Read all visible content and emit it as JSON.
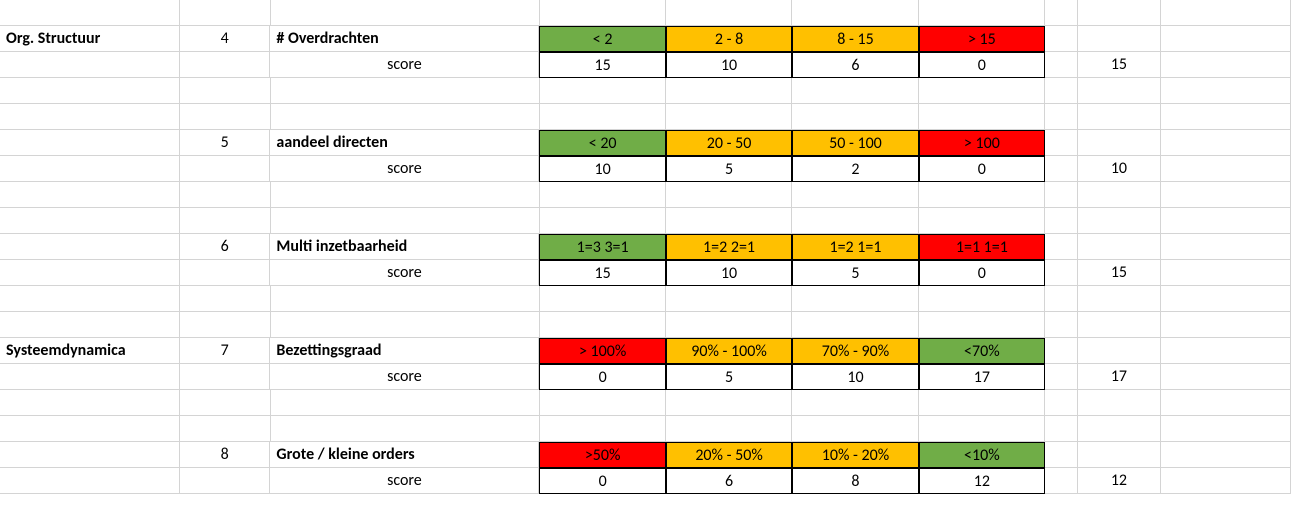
{
  "colors": {
    "green": "#70ad47",
    "amber": "#ffc000",
    "red": "#ff0000",
    "gridline": "#d4d4d4",
    "border": "#000000",
    "bg": "#ffffff",
    "text": "#000000"
  },
  "fontsize": 16,
  "font_family": "Calibri",
  "score_label": "score",
  "categories": [
    {
      "row_index": 4,
      "text": "Org. Structuur"
    },
    {
      "row_index": 7,
      "text": "Systeemdynamica"
    }
  ],
  "blocks": [
    {
      "num": "4",
      "label": "# Overdrachten",
      "thresholds": [
        {
          "text": "< 2",
          "bg": "#70ad47"
        },
        {
          "text": "2 - 8",
          "bg": "#ffc000"
        },
        {
          "text": "8 - 15",
          "bg": "#ffc000"
        },
        {
          "text": "> 15",
          "bg": "#ff0000"
        }
      ],
      "scores": [
        "15",
        "10",
        "6",
        "0"
      ],
      "after": "15"
    },
    {
      "num": "5",
      "label": "aandeel directen",
      "thresholds": [
        {
          "text": "< 20",
          "bg": "#70ad47"
        },
        {
          "text": "20 - 50",
          "bg": "#ffc000"
        },
        {
          "text": "50 - 100",
          "bg": "#ffc000"
        },
        {
          "text": "> 100",
          "bg": "#ff0000"
        }
      ],
      "scores": [
        "10",
        "5",
        "2",
        "0"
      ],
      "after": "10"
    },
    {
      "num": "6",
      "label": "Multi inzetbaarheid",
      "thresholds": [
        {
          "text": "1=3 3=1",
          "bg": "#70ad47"
        },
        {
          "text": "1=2 2=1",
          "bg": "#ffc000"
        },
        {
          "text": "1=2 1=1",
          "bg": "#ffc000"
        },
        {
          "text": "1=1 1=1",
          "bg": "#ff0000"
        }
      ],
      "scores": [
        "15",
        "10",
        "5",
        "0"
      ],
      "after": "15"
    },
    {
      "num": "7",
      "label": "Bezettingsgraad",
      "thresholds": [
        {
          "text": "> 100%",
          "bg": "#ff0000"
        },
        {
          "text": "90% - 100%",
          "bg": "#ffc000"
        },
        {
          "text": "70% - 90%",
          "bg": "#ffc000"
        },
        {
          "text": "<70%",
          "bg": "#70ad47"
        }
      ],
      "scores": [
        "0",
        "5",
        "10",
        "17"
      ],
      "after": "17"
    },
    {
      "num": "8",
      "label": "Grote / kleine orders",
      "thresholds": [
        {
          "text": ">50%",
          "bg": "#ff0000"
        },
        {
          "text": "20% - 50%",
          "bg": "#ffc000"
        },
        {
          "text": "10% - 20%",
          "bg": "#ffc000"
        },
        {
          "text": "<10%",
          "bg": "#70ad47"
        }
      ],
      "scores": [
        "0",
        "6",
        "8",
        "12"
      ],
      "after": "12"
    }
  ]
}
